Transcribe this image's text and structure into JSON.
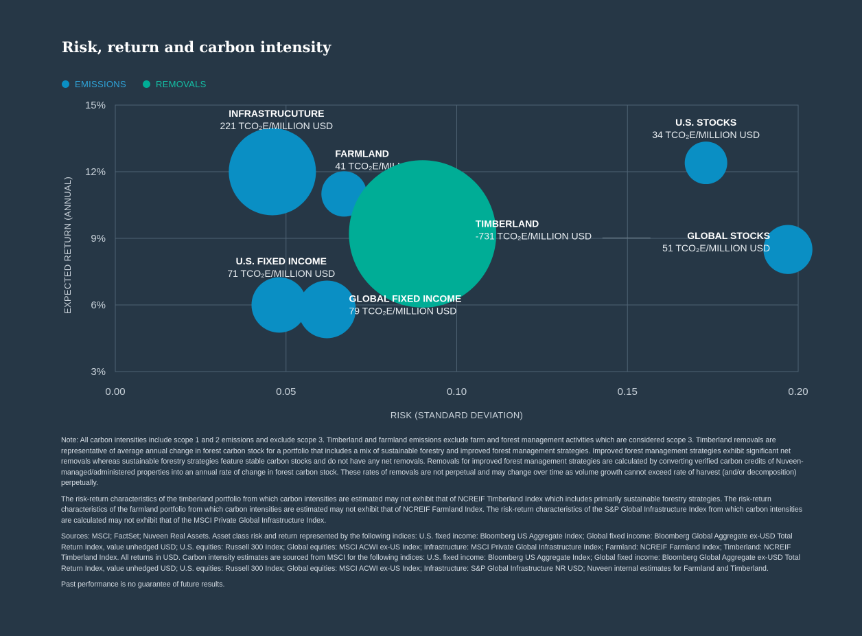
{
  "title": "Risk, return and carbon intensity",
  "legend": [
    {
      "label": "EMISSIONS",
      "color": "#0a8fc4"
    },
    {
      "label": "REMOVALS",
      "color": "#00ad96"
    }
  ],
  "chart_data": {
    "type": "scatter",
    "subtype": "bubble",
    "xlabel": "RISK (STANDARD DEVIATION)",
    "ylabel": "EXPECTED RETURN (ANNUAL)",
    "xlim": [
      0.0,
      0.2
    ],
    "ylim": [
      3,
      15
    ],
    "x_ticks": [
      "0.00",
      "0.05",
      "0.10",
      "0.15",
      "0.20"
    ],
    "y_ticks": [
      "3%",
      "6%",
      "9%",
      "12%",
      "15%"
    ],
    "grid": true,
    "legend_position": "top-left",
    "unit_label": "TCO₂E/MILLION USD",
    "points": [
      {
        "name": "INFRASTRUCUTURE",
        "value_text": "221 TCO₂E/MILLION USD",
        "x": 0.046,
        "y": 12.0,
        "intensity": 221,
        "category": "EMISSIONS"
      },
      {
        "name": "FARMLAND",
        "value_text": "41 TCO₂E/MILLION USD",
        "x": 0.067,
        "y": 11.0,
        "intensity": 41,
        "category": "EMISSIONS"
      },
      {
        "name": "TIMBERLAND",
        "value_text": "-731 TCO₂E/MILLION USD",
        "x": 0.09,
        "y": 9.2,
        "intensity": -731,
        "category": "REMOVALS"
      },
      {
        "name": "U.S. STOCKS",
        "value_text": "34 TCO₂E/MILLION USD",
        "x": 0.173,
        "y": 12.4,
        "intensity": 34,
        "category": "EMISSIONS"
      },
      {
        "name": "GLOBAL STOCKS",
        "value_text": "51 TCO₂E/MILLION USD",
        "x": 0.197,
        "y": 8.5,
        "intensity": 51,
        "category": "EMISSIONS"
      },
      {
        "name": "U.S. FIXED INCOME",
        "value_text": "71 TCO₂E/MILLION USD",
        "x": 0.048,
        "y": 6.0,
        "intensity": 71,
        "category": "EMISSIONS"
      },
      {
        "name": "GLOBAL FIXED INCOME",
        "value_text": "79 TCO₂E/MILLION USD",
        "x": 0.062,
        "y": 5.8,
        "intensity": 79,
        "category": "EMISSIONS"
      }
    ]
  },
  "notes": [
    "Note: All carbon intensities include scope 1 and 2 emissions and exclude scope 3. Timberland and farmland emissions exclude farm and forest management activities which are considered scope 3. Timberland removals are representative of average annual change in forest carbon stock for a portfolio that includes a mix of sustainable forestry and improved forest management strategies. Improved forest management strategies exhibit significant net removals whereas sustainable forestry strategies feature stable carbon stocks and do not have any net removals. Removals for improved forest management strategies are calculated by converting verified carbon credits of Nuveen-managed/administered properties into an annual rate of change in forest carbon stock. These rates of removals are not perpetual and may change over time as volume growth cannot exceed rate of harvest (and/or decomposition) perpetually.",
    "The risk-return characteristics of the timberland portfolio from which carbon intensities are estimated may not exhibit that of NCREIF Timberland Index which includes primarily sustainable forestry strategies. The risk-return characteristics of the farmland portfolio from which carbon intensities are estimated may not exhibit that of NCREIF Farmland Index. The risk-return characteristics of the S&P Global Infrastructure Index from which carbon intensities are calculated may not exhibit that of the MSCI Private Global Infrastructure Index.",
    "Sources: MSCI; FactSet; Nuveen Real Assets. Asset class risk and return represented by the following indices: U.S. fixed income: Bloomberg US Aggregate Index; Global fixed income: Bloomberg Global Aggregate ex-USD Total Return Index, value unhedged USD; U.S. equities: Russell 300 Index; Global equities: MSCI ACWI ex-US Index; Infrastructure: MSCI Private Global Infrastructure Index; Farmland: NCREIF Farmland Index; Timberland: NCREIF Timberland Index. All returns in USD. Carbon intensity estimates are sourced from MSCI for the following indices: U.S. fixed income: Bloomberg US Aggregate Index; Global fixed income: Bloomberg Global Aggregate ex-USD Total Return Index, value unhedged USD; U.S. equities: Russell 300 Index; Global equities: MSCI ACWI ex-US Index; Infrastructure: S&P Global Infrastructure NR USD; Nuveen internal estimates for Farmland and Timberland.",
    "Past performance is no guarantee of future results."
  ]
}
